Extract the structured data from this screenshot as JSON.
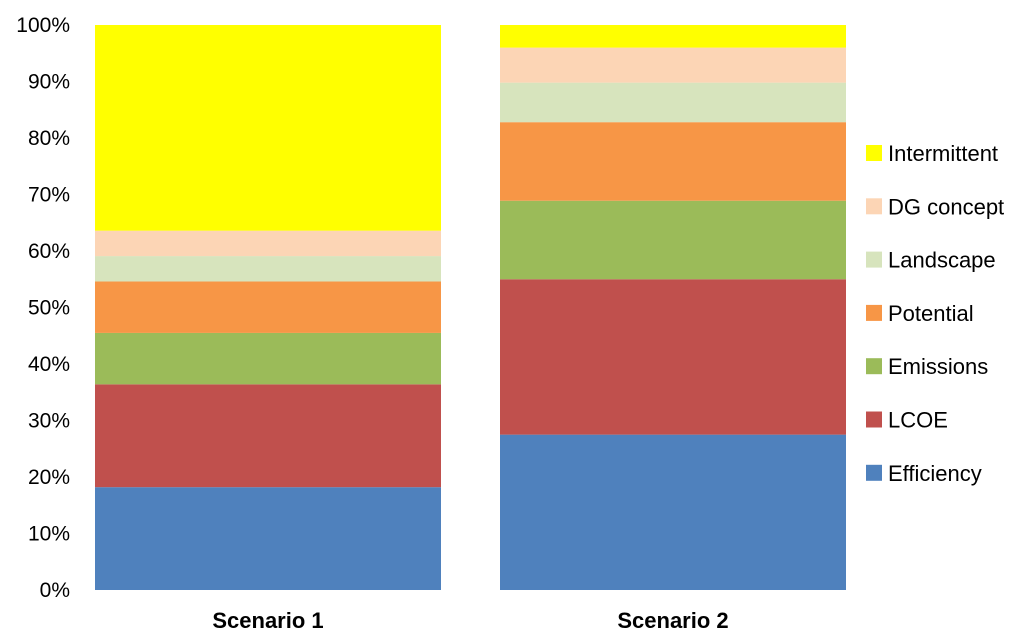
{
  "chart_data": {
    "type": "bar",
    "stacked": true,
    "percent": true,
    "categories": [
      "Scenario 1",
      "Scenario 2"
    ],
    "ylim": [
      0,
      100
    ],
    "yticks": [
      "0%",
      "10%",
      "20%",
      "30%",
      "40%",
      "50%",
      "60%",
      "70%",
      "80%",
      "90%",
      "100%"
    ],
    "grid": false,
    "legend_position": "right",
    "series": [
      {
        "name": "Efficiency",
        "color": "#4F81BD",
        "values": [
          18.2,
          27.5
        ]
      },
      {
        "name": "LCOE",
        "color": "#C0504D",
        "values": [
          18.2,
          27.5
        ]
      },
      {
        "name": "Emissions",
        "color": "#9BBB59",
        "values": [
          9.1,
          13.9
        ]
      },
      {
        "name": "Potential",
        "color": "#F79646",
        "values": [
          9.1,
          13.9
        ]
      },
      {
        "name": "Landscape",
        "color": "#D7E4BD",
        "values": [
          4.5,
          7.0
        ]
      },
      {
        "name": "DG concept",
        "color": "#FCD5B5",
        "values": [
          4.5,
          6.2
        ]
      },
      {
        "name": "Intermittent",
        "color": "#FFFF00",
        "values": [
          36.4,
          4.0
        ]
      }
    ]
  }
}
